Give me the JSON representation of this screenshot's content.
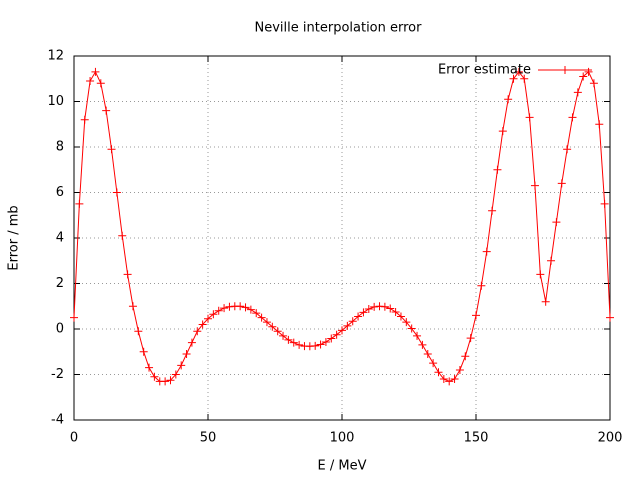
{
  "chart_data": {
    "type": "line",
    "title": "Neville interpolation error",
    "xlabel": "E / MeV",
    "ylabel": "Error / mb",
    "x": [
      0,
      2,
      4,
      6,
      8,
      10,
      12,
      14,
      16,
      18,
      20,
      22,
      24,
      26,
      28,
      30,
      32,
      34,
      36,
      38,
      40,
      42,
      44,
      46,
      48,
      50,
      52,
      54,
      56,
      58,
      60,
      62,
      64,
      66,
      68,
      70,
      72,
      74,
      76,
      78,
      80,
      82,
      84,
      86,
      88,
      90,
      92,
      94,
      96,
      98,
      100,
      102,
      104,
      106,
      108,
      110,
      112,
      114,
      116,
      118,
      120,
      122,
      124,
      126,
      128,
      130,
      132,
      134,
      136,
      138,
      140,
      142,
      144,
      146,
      148,
      150,
      152,
      154,
      156,
      158,
      160,
      162,
      164,
      166,
      168,
      170,
      172,
      174,
      176,
      178,
      180,
      182,
      184,
      186,
      188,
      190,
      192,
      194,
      196,
      198,
      200
    ],
    "series": [
      {
        "name": "Error estimate",
        "color": "#ff0000",
        "values": [
          0.5,
          5.5,
          9.2,
          10.9,
          11.3,
          10.8,
          9.6,
          7.9,
          6.0,
          4.1,
          2.4,
          1.0,
          -0.1,
          -1.0,
          -1.7,
          -2.1,
          -2.3,
          -2.3,
          -2.25,
          -2.0,
          -1.6,
          -1.1,
          -0.6,
          -0.1,
          0.2,
          0.45,
          0.65,
          0.8,
          0.92,
          0.98,
          1.0,
          1.0,
          0.95,
          0.85,
          0.7,
          0.5,
          0.3,
          0.1,
          -0.1,
          -0.3,
          -0.48,
          -0.6,
          -0.7,
          -0.75,
          -0.76,
          -0.74,
          -0.68,
          -0.57,
          -0.42,
          -0.25,
          -0.06,
          0.14,
          0.34,
          0.55,
          0.73,
          0.88,
          0.97,
          1.0,
          0.98,
          0.9,
          0.75,
          0.55,
          0.3,
          0.02,
          -0.3,
          -0.7,
          -1.1,
          -1.5,
          -1.9,
          -2.2,
          -2.3,
          -2.2,
          -1.8,
          -1.2,
          -0.4,
          0.6,
          1.9,
          3.4,
          5.2,
          7.0,
          8.7,
          10.1,
          11.0,
          11.3,
          11.0,
          9.3,
          6.3,
          2.4,
          1.2,
          3.0,
          4.7,
          6.4,
          7.9,
          9.3,
          10.4,
          11.1,
          11.3,
          10.8,
          9.0,
          5.5,
          0.5
        ]
      }
    ],
    "xlim": [
      0,
      200
    ],
    "xticks": [
      0,
      50,
      100,
      150,
      200
    ],
    "ylim": [
      -4,
      12
    ],
    "yticks": [
      -4,
      -2,
      0,
      2,
      4,
      6,
      8,
      10,
      12
    ],
    "grid": true,
    "legend": "top-right"
  }
}
